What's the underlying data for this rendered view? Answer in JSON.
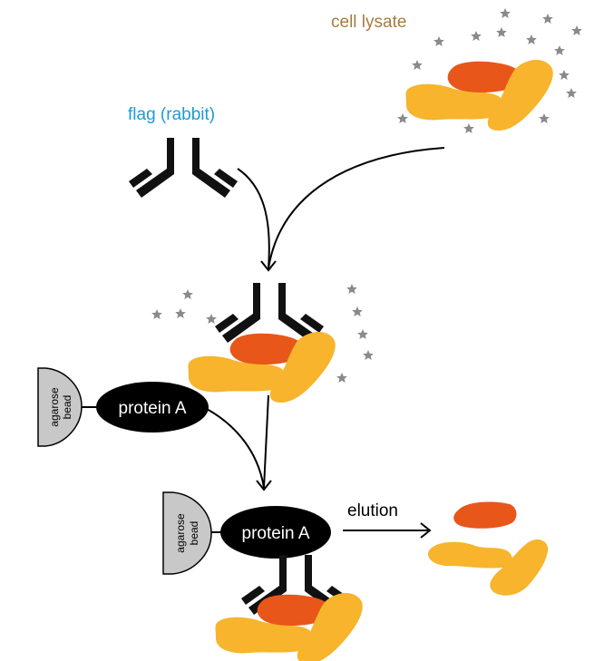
{
  "labels": {
    "cell_lysate": "cell lysate",
    "flag": "flag (rabbit)",
    "protein_a": "protein A",
    "agarose": "agarose",
    "bead": "bead",
    "elution": "elution"
  },
  "colors": {
    "cell_lysate_text": "#a77b3f",
    "flag_text": "#1e9ad6",
    "antibody": "#111111",
    "protein_a_fill": "#000000",
    "protein_a_text": "#ffffff",
    "bead_fill": "#c8c8c8",
    "protein_red": "#e8561a",
    "protein_yellow": "#f7b42c",
    "star": "#8a8a8a"
  }
}
